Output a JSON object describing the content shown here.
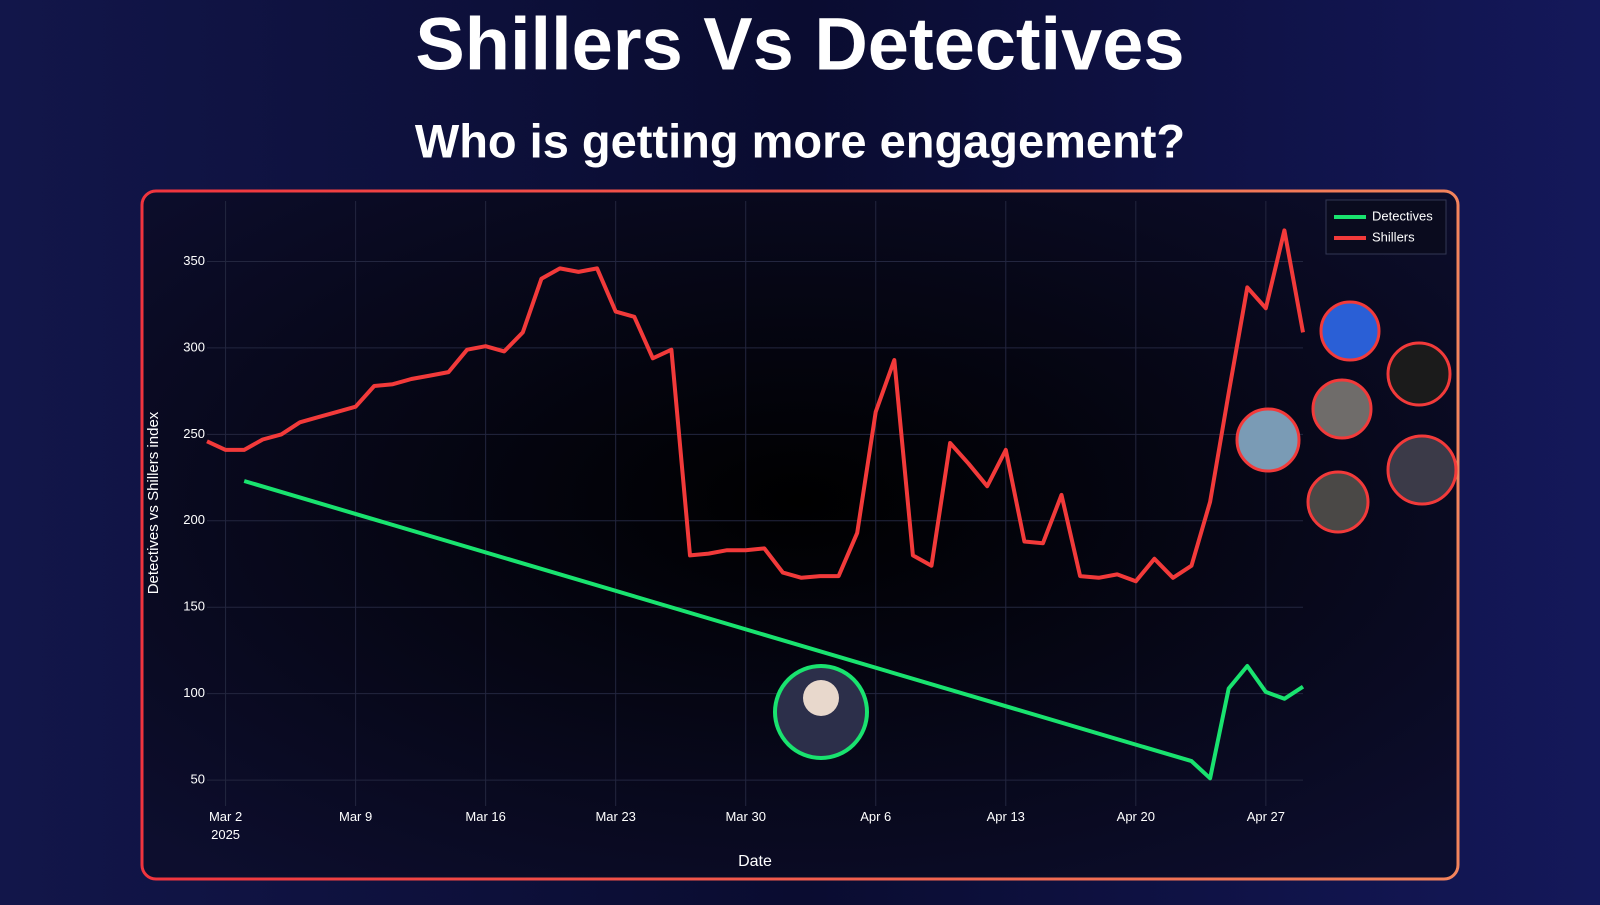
{
  "chart_data": {
    "type": "line",
    "title": "Shillers Vs Detectives",
    "subtitle": "Who is getting more engagement?",
    "x_label": "Date",
    "y_label": "Detectives vs Shillers index",
    "xlim": [
      "2025-03-01",
      "2025-04-29"
    ],
    "xticks": [
      {
        "value": "2025-03-02",
        "label": "Mar 2\n2025"
      },
      {
        "value": "2025-03-09",
        "label": "Mar 9"
      },
      {
        "value": "2025-03-16",
        "label": "Mar 16"
      },
      {
        "value": "2025-03-23",
        "label": "Mar 23"
      },
      {
        "value": "2025-03-30",
        "label": "Mar 30"
      },
      {
        "value": "2025-04-06",
        "label": "Apr 6"
      },
      {
        "value": "2025-04-13",
        "label": "Apr 13"
      },
      {
        "value": "2025-04-20",
        "label": "Apr 20"
      },
      {
        "value": "2025-04-27",
        "label": "Apr 27"
      }
    ],
    "ylim": [
      35,
      385
    ],
    "yticks": [
      50,
      100,
      150,
      200,
      250,
      300,
      350
    ],
    "grid": true,
    "legend": "top-right",
    "series": [
      {
        "name": "Detectives",
        "color": "#19e36f",
        "x": [
          "2025-03-03",
          "2025-04-23",
          "2025-04-24",
          "2025-04-25",
          "2025-04-26",
          "2025-04-27",
          "2025-04-28",
          "2025-04-29"
        ],
        "values": [
          223,
          61,
          51,
          103,
          116,
          101,
          97,
          104
        ]
      },
      {
        "name": "Shillers",
        "color": "#f23a3a",
        "x": [
          "2025-03-01",
          "2025-03-02",
          "2025-03-03",
          "2025-03-04",
          "2025-03-05",
          "2025-03-06",
          "2025-03-07",
          "2025-03-08",
          "2025-03-09",
          "2025-03-10",
          "2025-03-11",
          "2025-03-12",
          "2025-03-13",
          "2025-03-14",
          "2025-03-15",
          "2025-03-16",
          "2025-03-17",
          "2025-03-18",
          "2025-03-19",
          "2025-03-20",
          "2025-03-21",
          "2025-03-22",
          "2025-03-23",
          "2025-03-24",
          "2025-03-25",
          "2025-03-26",
          "2025-03-27",
          "2025-03-28",
          "2025-03-29",
          "2025-03-30",
          "2025-03-31",
          "2025-04-01",
          "2025-04-02",
          "2025-04-03",
          "2025-04-04",
          "2025-04-05",
          "2025-04-06",
          "2025-04-07",
          "2025-04-08",
          "2025-04-09",
          "2025-04-10",
          "2025-04-11",
          "2025-04-12",
          "2025-04-13",
          "2025-04-14",
          "2025-04-15",
          "2025-04-16",
          "2025-04-17",
          "2025-04-18",
          "2025-04-19",
          "2025-04-20",
          "2025-04-21",
          "2025-04-22",
          "2025-04-23",
          "2025-04-24",
          "2025-04-25",
          "2025-04-26",
          "2025-04-27",
          "2025-04-28",
          "2025-04-29"
        ],
        "values": [
          246,
          241,
          241,
          247,
          250,
          257,
          260,
          263,
          266,
          278,
          279,
          282,
          284,
          286,
          299,
          301,
          298,
          309,
          340,
          346,
          344,
          346,
          321,
          318,
          294,
          299,
          180,
          181,
          183,
          183,
          184,
          170,
          167,
          168,
          168,
          193,
          263,
          293,
          180,
          174,
          245,
          233,
          220,
          241,
          188,
          187,
          215,
          168,
          167,
          169,
          165,
          178,
          167,
          174,
          211,
          274,
          335,
          323,
          368,
          309
        ]
      }
    ]
  }
}
